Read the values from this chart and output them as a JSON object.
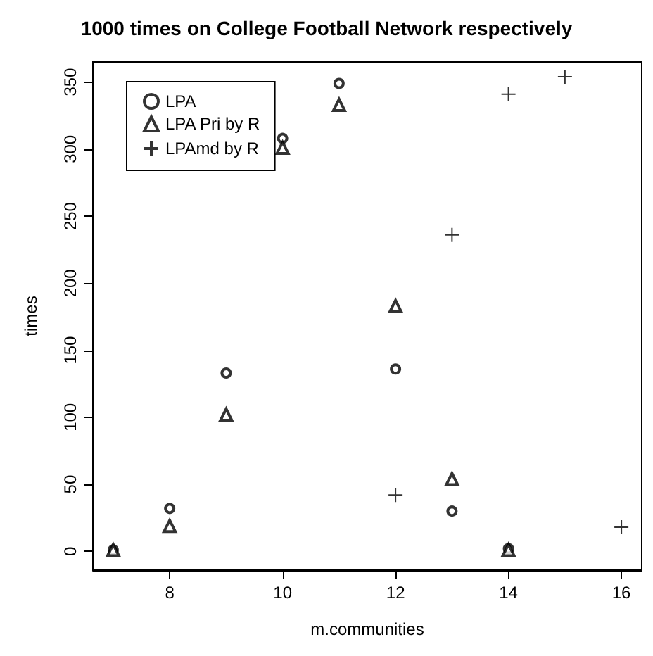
{
  "chart_data": {
    "type": "scatter",
    "title": "1000 times on College Football Network respectively",
    "xlabel": "m.communities",
    "ylabel": "times",
    "xlim": [
      6.64,
      16.36
    ],
    "xticks": [
      8,
      10,
      12,
      14,
      16
    ],
    "ylim": [
      -14,
      365
    ],
    "yticks": [
      0,
      50,
      100,
      150,
      200,
      250,
      300,
      350
    ],
    "grid": false,
    "legend": "top left",
    "series": [
      {
        "name": "LPA",
        "color": "#000000",
        "marker": "circle",
        "x": [
          7,
          8,
          9,
          10,
          11,
          12,
          13,
          14
        ],
        "values": [
          1,
          32,
          133,
          308,
          349,
          136,
          30,
          2
        ]
      },
      {
        "name": "LPA Pri by R",
        "color": "#000000",
        "marker": "triangle",
        "x": [
          7,
          8,
          9,
          10,
          11,
          12,
          13,
          14
        ],
        "values": [
          1,
          19,
          102,
          301,
          333,
          183,
          54,
          1
        ]
      },
      {
        "name": "LPAmd by R",
        "color": "#000000",
        "marker": "cross",
        "x": [
          12,
          13,
          14,
          15,
          16
        ],
        "values": [
          42,
          236,
          341,
          354,
          18
        ]
      }
    ]
  }
}
